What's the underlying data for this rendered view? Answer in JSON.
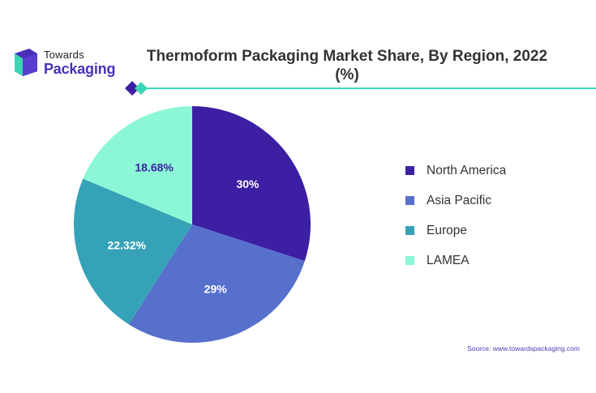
{
  "brand": {
    "line1": "Towards",
    "line2": "Packaging",
    "accent": "#4a2fb8",
    "teal": "#3dd6b4"
  },
  "chart_data": {
    "type": "pie",
    "title": "Thermoform Packaging Market Share, By Region, 2022 (%)",
    "categories": [
      "North America",
      "Asia Pacific",
      "Europe",
      "LAMEA"
    ],
    "values": [
      30,
      29,
      22.32,
      18.68
    ],
    "labels": [
      "30%",
      "29%",
      "22.32%",
      "18.68%"
    ],
    "colors": [
      "#3d1fa3",
      "#5670cc",
      "#36a2b8",
      "#8cf7d6"
    ],
    "label_colors": [
      "#ffffff",
      "#ffffff",
      "#ffffff",
      "#3d1fa3"
    ],
    "legend_position": "right"
  },
  "source": "Source: www.towardspackaging.com"
}
